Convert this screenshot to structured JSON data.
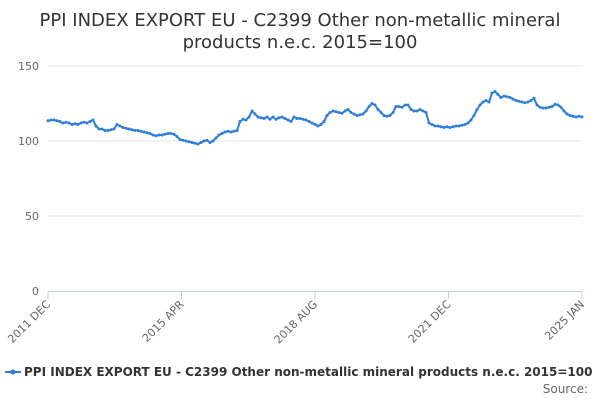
{
  "chart_data": {
    "type": "line",
    "title_lines": [
      "PPI INDEX EXPORT EU - C2399 Other non-metallic mineral",
      "products n.e.c. 2015=100"
    ],
    "y_ticks": [
      0,
      50,
      100,
      150
    ],
    "ylim": [
      0,
      155
    ],
    "x_tick_labels": [
      "2011 DEC",
      "2015 APR",
      "2018 AUG",
      "2021 DEC",
      "2025 JAN"
    ],
    "grid": "horizontal",
    "legend_position": "bottom",
    "series": [
      {
        "name": "PPI INDEX EXPORT EU - C2399 Other non-metallic mineral products n.e.c. 2015=100",
        "color": "#2f7ed8",
        "start": "2011-12",
        "values": [
          113.5,
          114,
          114,
          113.5,
          113,
          112,
          112.5,
          112,
          111,
          111.5,
          111,
          112,
          112.5,
          112,
          113,
          114,
          110,
          108,
          108,
          107,
          107,
          107.5,
          108,
          111,
          110,
          109,
          108.5,
          108,
          107.5,
          107,
          107,
          106.5,
          106,
          105.5,
          105,
          104,
          103.5,
          104,
          104,
          104.5,
          105,
          105,
          104.5,
          103,
          101,
          100.5,
          100,
          99.5,
          99,
          98.5,
          98,
          99,
          100,
          100.5,
          99,
          100,
          102,
          104,
          105,
          106,
          106.5,
          106,
          106.5,
          107,
          113,
          114.5,
          114,
          116,
          120,
          118,
          116,
          115.5,
          115,
          116,
          114.5,
          116,
          114.5,
          115.5,
          116,
          115,
          114,
          113,
          116,
          115,
          115,
          114.5,
          114,
          113,
          112,
          111,
          110,
          111,
          113,
          117,
          119,
          120,
          119.5,
          119,
          118.5,
          120,
          121,
          119,
          118,
          117,
          117.5,
          118,
          120,
          123,
          125,
          124,
          121,
          119,
          117,
          116.5,
          117,
          119,
          123,
          123,
          122.5,
          124,
          124,
          121,
          120,
          120,
          121,
          120,
          119,
          112,
          111,
          110,
          110,
          109.5,
          109,
          109.5,
          109,
          109.5,
          110,
          110,
          110.5,
          111,
          112,
          114,
          117,
          121,
          124,
          126,
          127,
          126,
          132,
          133,
          131,
          129,
          130,
          129.5,
          129,
          128,
          127,
          126.5,
          126,
          125.5,
          126,
          127,
          128.5,
          124,
          122.5,
          122,
          122,
          122.5,
          123,
          124.5,
          124,
          122.5,
          120,
          118,
          117,
          116.5,
          116,
          116.5,
          116
        ]
      }
    ]
  },
  "source_label": "Source:"
}
